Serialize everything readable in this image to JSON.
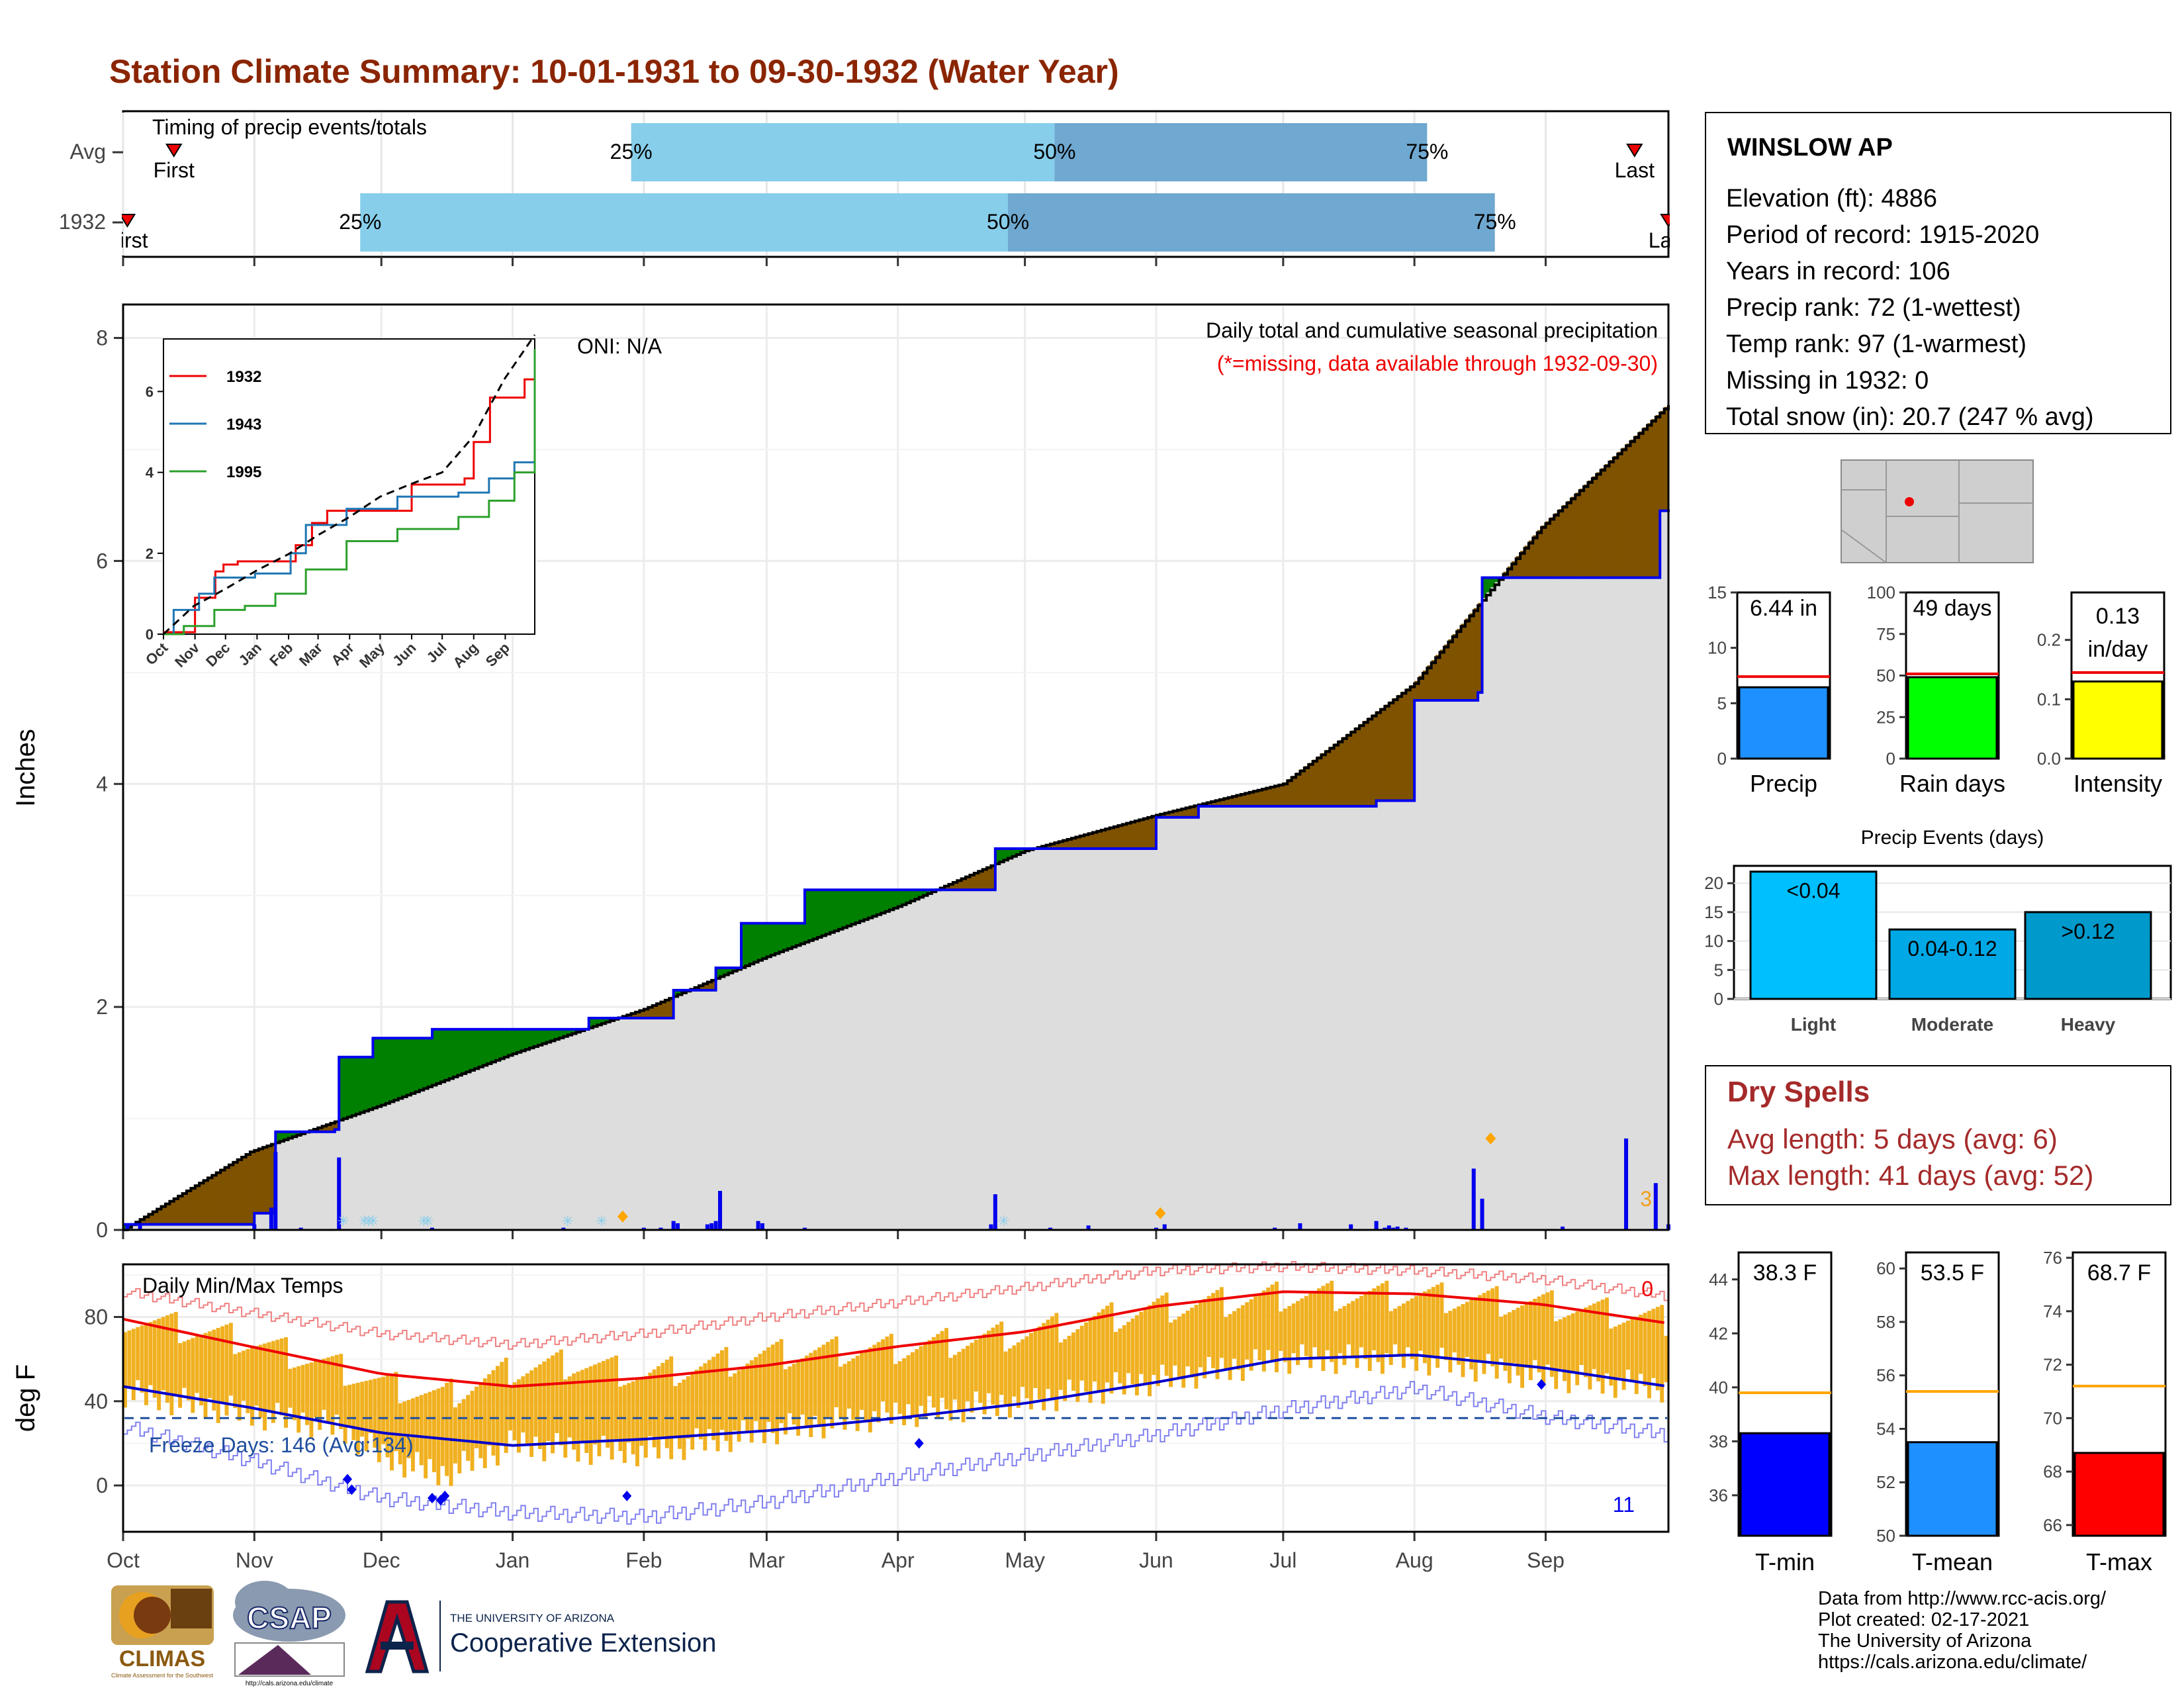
{
  "title": "Station Climate Summary: 10-01-1931 to 09-30-1932 (Water Year)",
  "colors": {
    "title": "#8B2500",
    "brown": "#7F5200",
    "green": "#008000",
    "blue": "#0000EE",
    "gray": "#DDDDDD",
    "light_blue": "#87CEEB",
    "mid_blue": "#6FA8D0",
    "red": "#EE0000",
    "orange": "#F0B020",
    "dry": "#A52A2A"
  },
  "chart_data": [
    {
      "id": "timing",
      "type": "bar",
      "title": "Timing of precip events/totals",
      "rows": [
        {
          "label": "Avg",
          "first": {
            "label": "First",
            "value": "1931-10-13"
          },
          "last": {
            "label": "Last",
            "value": "1932-09-22"
          },
          "p25": {
            "label": "25%",
            "value": "1932-01-29"
          },
          "p50": {
            "label": "50%",
            "value": "1932-05-08"
          },
          "p75": {
            "label": "75%",
            "value": "1932-08-04"
          }
        },
        {
          "label": "1932",
          "first": {
            "label": "First",
            "value": "1931-10-02"
          },
          "last": {
            "label": "Last",
            "value": "1932-09-30"
          },
          "p25": {
            "label": "25%",
            "value": "1931-11-26"
          },
          "p50": {
            "label": "50%",
            "value": "1932-04-27"
          },
          "p75": {
            "label": "75%",
            "value": "1932-08-20"
          }
        }
      ]
    },
    {
      "id": "precip",
      "type": "area",
      "title": "Daily total and cumulative seasonal precipitation",
      "subtitle": "(*=missing, data available through 1932-09-30)",
      "oni": "ONI: N/A",
      "ylabel": "Inches",
      "ylim": [
        0,
        8.3
      ],
      "yticks": [
        0,
        2,
        4,
        6,
        8
      ],
      "x_months": [
        "Oct",
        "Nov",
        "Dec",
        "Jan",
        "Feb",
        "Mar",
        "Apr",
        "May",
        "Jun",
        "Jul",
        "Aug",
        "Sep"
      ],
      "count_label": "3",
      "avg_cumulative": [
        [
          0,
          0
        ],
        [
          30,
          0.7
        ],
        [
          61,
          1.12
        ],
        [
          92,
          1.58
        ],
        [
          123,
          1.98
        ],
        [
          152,
          2.45
        ],
        [
          183,
          2.9
        ],
        [
          213,
          3.4
        ],
        [
          244,
          3.72
        ],
        [
          274,
          4.0
        ],
        [
          305,
          4.9
        ],
        [
          335,
          6.3
        ],
        [
          365,
          7.4
        ]
      ],
      "cumulative_1932": [
        [
          0,
          0.05
        ],
        [
          31,
          0.15
        ],
        [
          36,
          0.88
        ],
        [
          50,
          0.9
        ],
        [
          51,
          1.55
        ],
        [
          59,
          1.72
        ],
        [
          73,
          1.8
        ],
        [
          105,
          1.8
        ],
        [
          110,
          1.9
        ],
        [
          130,
          2.15
        ],
        [
          140,
          2.35
        ],
        [
          146,
          2.75
        ],
        [
          161,
          3.05
        ],
        [
          200,
          3.05
        ],
        [
          206,
          3.42
        ],
        [
          244,
          3.7
        ],
        [
          254,
          3.8
        ],
        [
          296,
          3.85
        ],
        [
          305,
          4.75
        ],
        [
          320,
          4.82
        ],
        [
          321,
          5.85
        ],
        [
          363,
          6.45
        ],
        [
          365,
          6.44
        ]
      ],
      "daily_1932": [
        [
          1,
          0.05
        ],
        [
          4,
          0.05
        ],
        [
          31,
          0.05
        ],
        [
          35,
          0.2
        ],
        [
          36,
          0.7
        ],
        [
          42,
          0.02
        ],
        [
          51,
          0.65
        ],
        [
          73,
          0.02
        ],
        [
          104,
          0.02
        ],
        [
          123,
          0.02
        ],
        [
          127,
          0.02
        ],
        [
          130,
          0.08
        ],
        [
          131,
          0.06
        ],
        [
          138,
          0.05
        ],
        [
          139,
          0.06
        ],
        [
          140,
          0.08
        ],
        [
          141,
          0.35
        ],
        [
          150,
          0.08
        ],
        [
          151,
          0.06
        ],
        [
          161,
          0.02
        ],
        [
          205,
          0.05
        ],
        [
          206,
          0.32
        ],
        [
          219,
          0.02
        ],
        [
          228,
          0.04
        ],
        [
          244,
          0.02
        ],
        [
          246,
          0.05
        ],
        [
          272,
          0.02
        ],
        [
          278,
          0.06
        ],
        [
          290,
          0.05
        ],
        [
          296,
          0.08
        ],
        [
          298,
          0.02
        ],
        [
          299,
          0.04
        ],
        [
          300,
          0.02
        ],
        [
          301,
          0.03
        ],
        [
          303,
          0.02
        ],
        [
          319,
          0.55
        ],
        [
          321,
          0.28
        ],
        [
          340,
          0.03
        ],
        [
          355,
          0.82
        ],
        [
          355,
          0.05
        ],
        [
          362,
          0.42
        ],
        [
          365,
          0.05
        ]
      ],
      "daily_markers": [
        {
          "day": 118,
          "value": 0.12
        },
        {
          "day": 245,
          "value": 0.15
        },
        {
          "day": 323,
          "value": 0.82
        }
      ],
      "snow_days": [
        52,
        57,
        58,
        59,
        71,
        72,
        105,
        113,
        208
      ],
      "inset": {
        "xticks": [
          "Oct",
          "Nov",
          "Dec",
          "Jan",
          "Feb",
          "Mar",
          "Apr",
          "May",
          "Jun",
          "Jul",
          "Aug",
          "Sep"
        ],
        "yticks": [
          0,
          2,
          4,
          6
        ],
        "ylim": [
          0,
          7.3
        ],
        "series": [
          {
            "name": "1932",
            "color": "#EE0000",
            "values": [
              [
                0,
                0.05
              ],
              [
                31,
                0.9
              ],
              [
                51,
                1.55
              ],
              [
                59,
                1.72
              ],
              [
                73,
                1.8
              ],
              [
                105,
                1.8
              ],
              [
                130,
                2.2
              ],
              [
                146,
                2.75
              ],
              [
                161,
                3.05
              ],
              [
                200,
                3.05
              ],
              [
                244,
                3.7
              ],
              [
                296,
                3.85
              ],
              [
                305,
                4.75
              ],
              [
                321,
                5.85
              ],
              [
                355,
                6.3
              ],
              [
                365,
                6.44
              ]
            ]
          },
          {
            "name": "1943",
            "color": "#1F77B4",
            "values": [
              [
                0,
                0
              ],
              [
                10,
                0.6
              ],
              [
                35,
                1.0
              ],
              [
                50,
                1.4
              ],
              [
                90,
                1.5
              ],
              [
                125,
                2.0
              ],
              [
                140,
                2.7
              ],
              [
                180,
                3.1
              ],
              [
                230,
                3.4
              ],
              [
                290,
                3.5
              ],
              [
                320,
                3.85
              ],
              [
                345,
                4.25
              ],
              [
                365,
                6.7
              ]
            ]
          },
          {
            "name": "1995",
            "color": "#2CA02C",
            "values": [
              [
                0,
                0
              ],
              [
                20,
                0.2
              ],
              [
                50,
                0.6
              ],
              [
                80,
                0.7
              ],
              [
                110,
                1.0
              ],
              [
                140,
                1.6
              ],
              [
                180,
                2.3
              ],
              [
                230,
                2.6
              ],
              [
                290,
                2.9
              ],
              [
                320,
                3.3
              ],
              [
                345,
                4.0
              ],
              [
                365,
                7.05
              ]
            ]
          },
          {
            "name": "",
            "color": "#000000",
            "dashed": true,
            "values": [
              [
                0,
                0
              ],
              [
                30,
                0.7
              ],
              [
                61,
                1.12
              ],
              [
                92,
                1.58
              ],
              [
                123,
                1.98
              ],
              [
                152,
                2.45
              ],
              [
                183,
                2.9
              ],
              [
                213,
                3.4
              ],
              [
                244,
                3.72
              ],
              [
                274,
                4.0
              ],
              [
                305,
                4.9
              ],
              [
                335,
                6.3
              ],
              [
                365,
                7.4
              ]
            ]
          }
        ]
      }
    },
    {
      "id": "temps",
      "type": "line",
      "title": "Daily Min/Max Temps",
      "ylabel": "deg F",
      "ylim": [
        -22,
        105
      ],
      "yticks": [
        0,
        40,
        80
      ],
      "freeze_label": "Freeze Days: 146 (Avg:134)",
      "freeze_line": 32,
      "count_hot": "0",
      "count_cold": "11",
      "x_months": [
        "Oct",
        "Nov",
        "Dec",
        "Jan",
        "Feb",
        "Mar",
        "Apr",
        "May",
        "Jun",
        "Jul",
        "Aug",
        "Sep"
      ],
      "avg_max": [
        [
          0,
          79
        ],
        [
          30,
          66
        ],
        [
          61,
          53
        ],
        [
          92,
          47
        ],
        [
          123,
          51
        ],
        [
          152,
          57
        ],
        [
          183,
          66
        ],
        [
          213,
          73
        ],
        [
          244,
          85
        ],
        [
          274,
          92
        ],
        [
          305,
          91
        ],
        [
          335,
          86
        ],
        [
          365,
          77
        ]
      ],
      "avg_min": [
        [
          0,
          47
        ],
        [
          30,
          37
        ],
        [
          61,
          25
        ],
        [
          92,
          19
        ],
        [
          123,
          22
        ],
        [
          152,
          26
        ],
        [
          183,
          32
        ],
        [
          213,
          39
        ],
        [
          244,
          49
        ],
        [
          274,
          60
        ],
        [
          305,
          62
        ],
        [
          335,
          56
        ],
        [
          365,
          47
        ]
      ],
      "record_max": [
        [
          0,
          92
        ],
        [
          30,
          82
        ],
        [
          61,
          72
        ],
        [
          92,
          67
        ],
        [
          123,
          72
        ],
        [
          152,
          80
        ],
        [
          183,
          87
        ],
        [
          213,
          94
        ],
        [
          244,
          102
        ],
        [
          274,
          104
        ],
        [
          305,
          102
        ],
        [
          335,
          98
        ],
        [
          365,
          90
        ]
      ],
      "record_min": [
        [
          0,
          28
        ],
        [
          30,
          12
        ],
        [
          61,
          -6
        ],
        [
          92,
          -13
        ],
        [
          123,
          -15
        ],
        [
          152,
          -8
        ],
        [
          183,
          4
        ],
        [
          213,
          14
        ],
        [
          244,
          24
        ],
        [
          274,
          36
        ],
        [
          305,
          46
        ],
        [
          335,
          33
        ],
        [
          365,
          24
        ]
      ],
      "tmax_1932": [
        [
          0,
          80
        ],
        [
          30,
          68
        ],
        [
          50,
          56
        ],
        [
          61,
          48
        ],
        [
          75,
          42
        ],
        [
          92,
          55
        ],
        [
          106,
          58
        ],
        [
          123,
          52
        ],
        [
          152,
          62
        ],
        [
          183,
          65
        ],
        [
          213,
          72
        ],
        [
          244,
          84
        ],
        [
          274,
          90
        ],
        [
          305,
          90
        ],
        [
          335,
          86
        ],
        [
          365,
          78
        ]
      ],
      "tmin_1932": [
        [
          0,
          44
        ],
        [
          30,
          34
        ],
        [
          50,
          28
        ],
        [
          61,
          14
        ],
        [
          75,
          5
        ],
        [
          92,
          20
        ],
        [
          106,
          17
        ],
        [
          123,
          16
        ],
        [
          152,
          26
        ],
        [
          183,
          34
        ],
        [
          213,
          40
        ],
        [
          244,
          50
        ],
        [
          274,
          60
        ],
        [
          305,
          60
        ],
        [
          335,
          52
        ],
        [
          365,
          46
        ]
      ],
      "cold_markers": [
        [
          53,
          3
        ],
        [
          54,
          -2
        ],
        [
          73,
          -6
        ],
        [
          75,
          -7
        ],
        [
          76,
          -5
        ],
        [
          119,
          -5
        ],
        [
          188,
          20
        ],
        [
          335,
          48
        ]
      ]
    },
    {
      "id": "precip_bars",
      "type": "bar",
      "categories": [
        "Precip",
        "Rain days",
        "Intensity"
      ],
      "values": [
        6.44,
        49,
        0.13
      ],
      "avg": [
        7.4,
        51,
        0.145
      ],
      "labels": [
        "6.44 in",
        "49 days",
        "0.13 in/day"
      ],
      "ylims": [
        [
          0,
          15
        ],
        [
          0,
          100
        ],
        [
          0,
          0.28
        ]
      ],
      "yticks": [
        [
          0,
          5,
          10,
          15
        ],
        [
          0,
          25,
          50,
          75,
          100
        ],
        [
          0.0,
          0.1,
          0.2
        ]
      ],
      "bar_colors": [
        "#1E90FF",
        "#00FF00",
        "#FFFF00"
      ]
    },
    {
      "id": "events",
      "type": "bar",
      "title": "Precip Events (days)",
      "categories": [
        "Light",
        "Moderate",
        "Heavy"
      ],
      "values": [
        22,
        12,
        15
      ],
      "labels": [
        "<0.04",
        "0.04-0.12",
        ">0.12"
      ],
      "ylim": [
        0,
        23
      ],
      "yticks": [
        0,
        5,
        10,
        15,
        20
      ],
      "bar_colors": [
        "#00BFFF",
        "#00A8E6",
        "#0099CC"
      ]
    },
    {
      "id": "temp_bars",
      "type": "bar",
      "categories": [
        "T-min",
        "T-mean",
        "T-max"
      ],
      "values": [
        38.3,
        53.5,
        68.7
      ],
      "avg": [
        39.8,
        55.4,
        71.2
      ],
      "labels": [
        "38.3 F",
        "53.5 F",
        "68.7 F"
      ],
      "ylims": [
        [
          34.5,
          45
        ],
        [
          50,
          60.6
        ],
        [
          65.6,
          76.2
        ]
      ],
      "yticks": [
        [
          36,
          38,
          40,
          42,
          44
        ],
        [
          50,
          52,
          54,
          56,
          58,
          60
        ],
        [
          66,
          68,
          70,
          72,
          74,
          76
        ]
      ],
      "bar_colors": [
        "#0000FF",
        "#1E90FF",
        "#FF0000"
      ]
    }
  ],
  "station": {
    "name": "WINSLOW AP",
    "lines": [
      "Elevation (ft): 4886",
      "Period of record: 1915-2020",
      "Years in record: 106",
      "Precip rank: 72 (1-wettest)",
      "Temp rank: 97 (1-warmest)",
      "Missing in 1932: 0",
      "Total snow (in): 20.7 (247 % avg)"
    ]
  },
  "dry_spells": {
    "title": "Dry Spells",
    "avg": "Avg length: 5 days (avg: 6)",
    "max": "Max length: 41 days (avg: 52)"
  },
  "footer": {
    "lines": [
      "Data from http://www.rcc-acis.org/",
      "Plot created: 02-17-2021",
      "The University of Arizona",
      "https://cals.arizona.edu/climate/"
    ]
  },
  "logos": {
    "climas": "CLIMAS",
    "climas_sub": "Climate Assessment for the Southwest",
    "csap": "CSAP",
    "csap_url": "http://cals.arizona.edu/climate",
    "ua_small": "THE UNIVERSITY OF ARIZONA",
    "ua_big": "Cooperative Extension"
  }
}
